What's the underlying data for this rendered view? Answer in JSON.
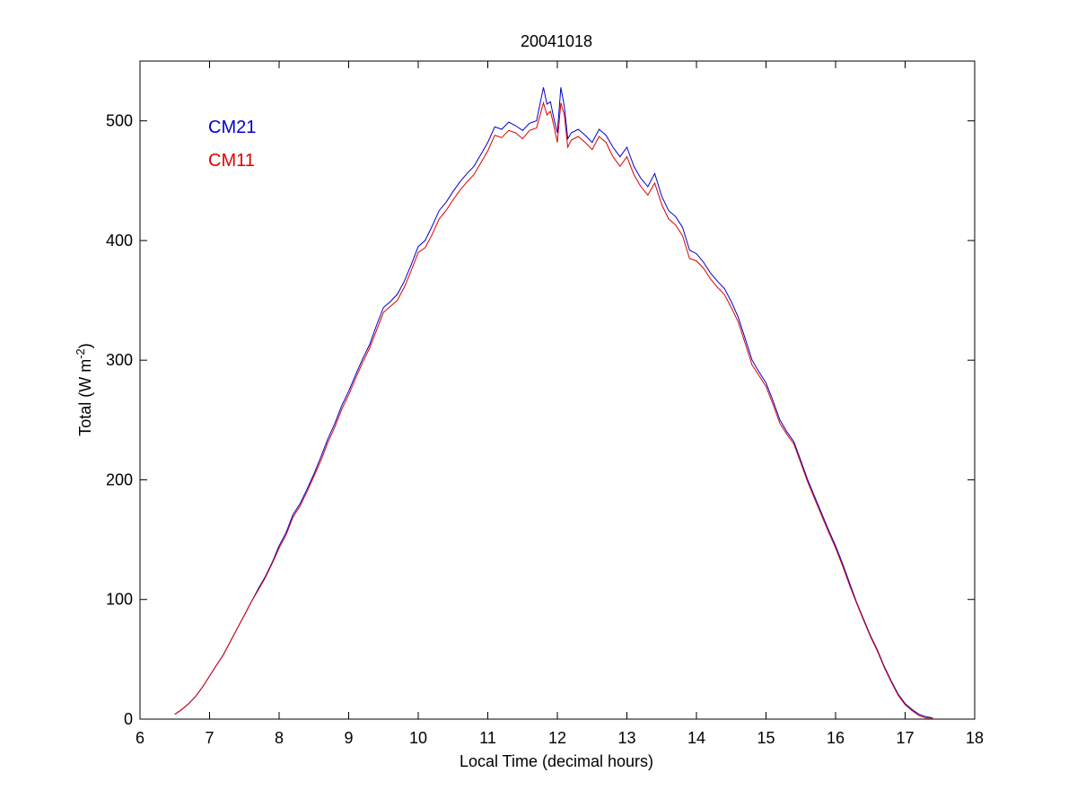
{
  "chart_data": {
    "type": "line",
    "title": "20041018",
    "xlabel": "Local Time (decimal hours)",
    "ylabel": "Total (W m",
    "ylabel_superscript": "-2",
    "ylabel_close": ")",
    "xlim": [
      6,
      18
    ],
    "ylim": [
      0,
      550
    ],
    "xticks": [
      6,
      7,
      8,
      9,
      10,
      11,
      12,
      13,
      14,
      15,
      16,
      17,
      18
    ],
    "yticks": [
      0,
      100,
      200,
      300,
      400,
      500
    ],
    "grid": false,
    "legend_position": "top-left",
    "series": [
      {
        "name": "CM21",
        "color": "#0000cc",
        "x": [
          6.5,
          6.6,
          6.7,
          6.8,
          6.9,
          7.0,
          7.1,
          7.2,
          7.3,
          7.4,
          7.5,
          7.6,
          7.7,
          7.8,
          7.9,
          8.0,
          8.1,
          8.2,
          8.3,
          8.4,
          8.5,
          8.6,
          8.7,
          8.8,
          8.9,
          9.0,
          9.1,
          9.2,
          9.3,
          9.4,
          9.5,
          9.6,
          9.7,
          9.8,
          9.9,
          10.0,
          10.1,
          10.2,
          10.3,
          10.4,
          10.5,
          10.6,
          10.7,
          10.8,
          10.9,
          11.0,
          11.1,
          11.2,
          11.3,
          11.4,
          11.5,
          11.6,
          11.7,
          11.8,
          11.85,
          11.9,
          11.95,
          12.0,
          12.05,
          12.1,
          12.15,
          12.2,
          12.3,
          12.4,
          12.5,
          12.6,
          12.7,
          12.8,
          12.9,
          13.0,
          13.1,
          13.2,
          13.3,
          13.4,
          13.5,
          13.6,
          13.7,
          13.8,
          13.9,
          14.0,
          14.1,
          14.2,
          14.3,
          14.4,
          14.5,
          14.6,
          14.7,
          14.8,
          14.9,
          15.0,
          15.1,
          15.2,
          15.3,
          15.4,
          15.5,
          15.6,
          15.7,
          15.8,
          15.9,
          16.0,
          16.1,
          16.2,
          16.3,
          16.4,
          16.5,
          16.6,
          16.7,
          16.8,
          16.9,
          17.0,
          17.1,
          17.2,
          17.3,
          17.4
        ],
        "y": [
          4,
          8,
          13,
          19,
          27,
          36,
          45,
          54,
          65,
          76,
          87,
          98,
          109,
          119,
          131,
          145,
          156,
          171,
          180,
          192,
          205,
          219,
          234,
          247,
          262,
          274,
          288,
          301,
          313,
          329,
          344,
          349,
          355,
          366,
          380,
          395,
          400,
          412,
          425,
          432,
          441,
          449,
          456,
          462,
          472,
          482,
          495,
          493,
          499,
          496,
          492,
          498,
          500,
          528,
          514,
          516,
          502,
          490,
          528,
          512,
          485,
          490,
          493,
          488,
          482,
          493,
          488,
          478,
          470,
          478,
          462,
          452,
          445,
          456,
          437,
          425,
          420,
          411,
          392,
          389,
          382,
          373,
          366,
          360,
          349,
          336,
          318,
          300,
          290,
          281,
          266,
          250,
          240,
          232,
          216,
          200,
          186,
          172,
          158,
          145,
          130,
          114,
          98,
          84,
          70,
          58,
          44,
          32,
          21,
          13,
          8,
          4,
          2,
          1
        ],
        "note_y_units": "W m-2"
      },
      {
        "name": "CM11",
        "color": "#dd0000",
        "x": [
          6.5,
          6.6,
          6.7,
          6.8,
          6.9,
          7.0,
          7.1,
          7.2,
          7.3,
          7.4,
          7.5,
          7.6,
          7.7,
          7.8,
          7.9,
          8.0,
          8.1,
          8.2,
          8.3,
          8.4,
          8.5,
          8.6,
          8.7,
          8.8,
          8.9,
          9.0,
          9.1,
          9.2,
          9.3,
          9.4,
          9.5,
          9.6,
          9.7,
          9.8,
          9.9,
          10.0,
          10.1,
          10.2,
          10.3,
          10.4,
          10.5,
          10.6,
          10.7,
          10.8,
          10.9,
          11.0,
          11.1,
          11.2,
          11.3,
          11.4,
          11.5,
          11.6,
          11.7,
          11.8,
          11.85,
          11.9,
          11.95,
          12.0,
          12.05,
          12.1,
          12.15,
          12.2,
          12.3,
          12.4,
          12.5,
          12.6,
          12.7,
          12.8,
          12.9,
          13.0,
          13.1,
          13.2,
          13.3,
          13.4,
          13.5,
          13.6,
          13.7,
          13.8,
          13.9,
          14.0,
          14.1,
          14.2,
          14.3,
          14.4,
          14.5,
          14.6,
          14.7,
          14.8,
          14.9,
          15.0,
          15.1,
          15.2,
          15.3,
          15.4,
          15.5,
          15.6,
          15.7,
          15.8,
          15.9,
          16.0,
          16.1,
          16.2,
          16.3,
          16.4,
          16.5,
          16.6,
          16.7,
          16.8,
          16.9,
          17.0,
          17.1,
          17.2,
          17.3,
          17.4
        ],
        "y": [
          4,
          8,
          13,
          19,
          27,
          36,
          45,
          54,
          65,
          76,
          87,
          98,
          108,
          118,
          130,
          143,
          154,
          169,
          178,
          190,
          203,
          216,
          231,
          244,
          259,
          271,
          285,
          298,
          310,
          325,
          340,
          345,
          350,
          361,
          375,
          390,
          394,
          405,
          418,
          425,
          434,
          442,
          449,
          455,
          465,
          475,
          488,
          486,
          492,
          490,
          485,
          492,
          494,
          515,
          505,
          508,
          496,
          482,
          515,
          505,
          478,
          484,
          487,
          482,
          476,
          487,
          482,
          470,
          462,
          470,
          455,
          445,
          438,
          448,
          430,
          418,
          413,
          404,
          385,
          383,
          377,
          368,
          361,
          355,
          344,
          332,
          314,
          296,
          287,
          278,
          263,
          247,
          238,
          230,
          214,
          198,
          184,
          170,
          156,
          143,
          128,
          112,
          97,
          83,
          69,
          57,
          43,
          31,
          20,
          12,
          7,
          3,
          1,
          1
        ]
      }
    ]
  }
}
